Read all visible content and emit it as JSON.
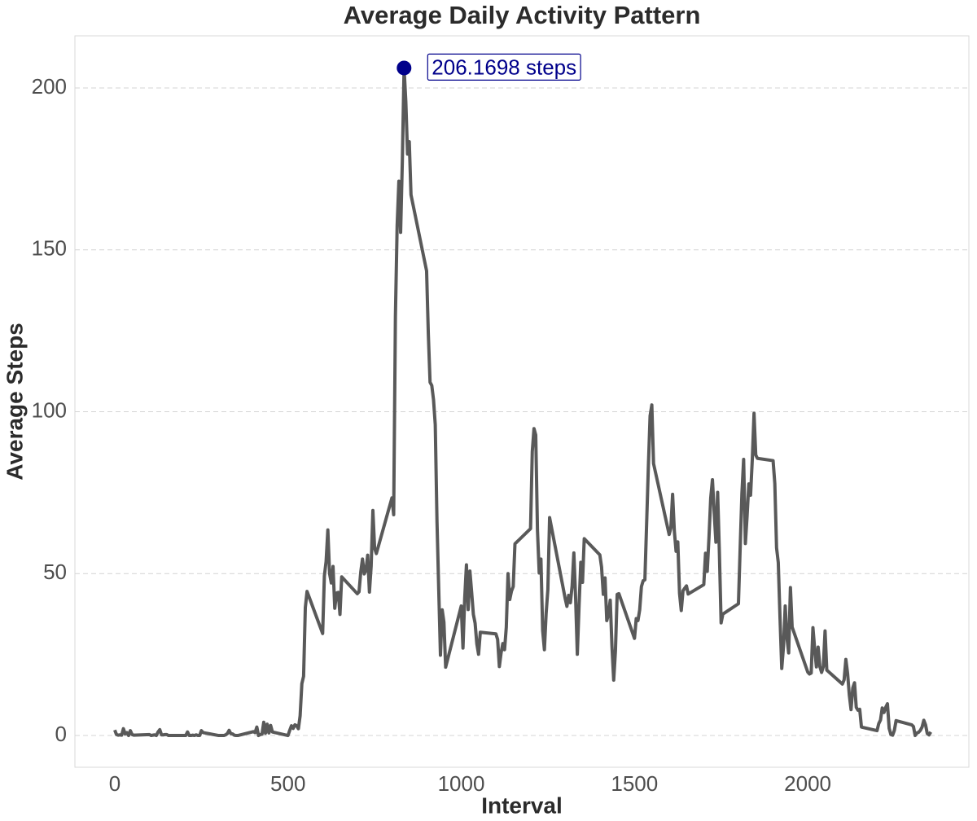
{
  "chart_data": {
    "type": "line",
    "title": "Average Daily Activity Pattern",
    "x_label": "Interval",
    "y_label": "Average Steps",
    "x": [
      0,
      5,
      10,
      15,
      20,
      25,
      30,
      35,
      40,
      45,
      50,
      55,
      100,
      105,
      110,
      115,
      120,
      125,
      130,
      135,
      140,
      145,
      150,
      155,
      200,
      205,
      210,
      215,
      220,
      225,
      230,
      235,
      240,
      245,
      250,
      255,
      300,
      305,
      310,
      315,
      320,
      325,
      330,
      335,
      340,
      345,
      350,
      355,
      400,
      405,
      410,
      415,
      420,
      425,
      430,
      435,
      440,
      445,
      450,
      455,
      500,
      505,
      510,
      515,
      520,
      525,
      530,
      535,
      540,
      545,
      550,
      555,
      600,
      605,
      610,
      615,
      620,
      625,
      630,
      635,
      640,
      645,
      650,
      655,
      700,
      705,
      710,
      715,
      720,
      725,
      730,
      735,
      740,
      745,
      750,
      755,
      800,
      805,
      810,
      815,
      820,
      825,
      830,
      835,
      840,
      845,
      850,
      855,
      900,
      905,
      910,
      915,
      920,
      925,
      930,
      935,
      940,
      945,
      950,
      955,
      1000,
      1005,
      1010,
      1015,
      1020,
      1025,
      1030,
      1035,
      1040,
      1045,
      1050,
      1055,
      1100,
      1105,
      1110,
      1115,
      1120,
      1125,
      1130,
      1135,
      1140,
      1145,
      1150,
      1155,
      1200,
      1205,
      1210,
      1215,
      1220,
      1225,
      1230,
      1235,
      1240,
      1245,
      1250,
      1255,
      1300,
      1305,
      1310,
      1315,
      1320,
      1325,
      1330,
      1335,
      1340,
      1345,
      1350,
      1355,
      1400,
      1405,
      1410,
      1415,
      1420,
      1425,
      1430,
      1435,
      1440,
      1445,
      1450,
      1455,
      1500,
      1505,
      1510,
      1515,
      1520,
      1525,
      1530,
      1535,
      1540,
      1545,
      1550,
      1555,
      1600,
      1605,
      1610,
      1615,
      1620,
      1625,
      1630,
      1635,
      1640,
      1645,
      1650,
      1655,
      1700,
      1705,
      1710,
      1715,
      1720,
      1725,
      1730,
      1735,
      1740,
      1745,
      1750,
      1755,
      1800,
      1805,
      1810,
      1815,
      1820,
      1825,
      1830,
      1835,
      1840,
      1845,
      1850,
      1855,
      1900,
      1905,
      1910,
      1915,
      1920,
      1925,
      1930,
      1935,
      1940,
      1945,
      1950,
      1955,
      2000,
      2005,
      2010,
      2015,
      2020,
      2025,
      2030,
      2035,
      2040,
      2045,
      2050,
      2055,
      2100,
      2105,
      2110,
      2115,
      2120,
      2125,
      2130,
      2135,
      2140,
      2145,
      2150,
      2155,
      2200,
      2205,
      2210,
      2215,
      2220,
      2225,
      2230,
      2235,
      2240,
      2245,
      2250,
      2255,
      2300,
      2305,
      2310,
      2315,
      2320,
      2325,
      2330,
      2335,
      2340,
      2345,
      2350,
      2355
    ],
    "values": [
      1.7,
      0.3,
      0.1,
      0.2,
      0.1,
      2.1,
      0.5,
      0.9,
      0,
      1.5,
      0.3,
      0.1,
      0.3,
      0,
      0.1,
      0.2,
      0,
      1.1,
      1.8,
      0.2,
      0.2,
      0.3,
      0.3,
      0,
      0,
      0,
      1.1,
      0,
      0,
      0.1,
      0,
      0.2,
      0,
      0,
      1.5,
      0.9,
      0,
      0,
      0,
      0,
      0.2,
      0.6,
      1.6,
      0.6,
      0.5,
      0.1,
      0,
      0,
      1.2,
      0.9,
      2.6,
      0,
      0.3,
      0.4,
      4.1,
      0.7,
      3.5,
      0.8,
      3.1,
      1.1,
      0,
      1.6,
      3,
      2.2,
      3.3,
      3,
      2.1,
      6.1,
      16,
      18.3,
      39.5,
      44.5,
      31.5,
      49.3,
      53.8,
      63.5,
      50,
      47.1,
      52.2,
      39.3,
      44,
      44.2,
      37.4,
      49,
      43.8,
      44.4,
      50.5,
      54.5,
      49.9,
      51,
      55.7,
      44.3,
      52.3,
      69.5,
      57.8,
      56.2,
      73.4,
      68.2,
      129.4,
      157.5,
      171.2,
      155.4,
      177.3,
      206.1698,
      195.9,
      179.6,
      183.4,
      167,
      143.5,
      124,
      109.1,
      108.1,
      103.7,
      96,
      66.2,
      45.2,
      24.8,
      38.8,
      35,
      21.1,
      40,
      27,
      42.4,
      52.7,
      38.9,
      50.8,
      44.3,
      37.4,
      34.7,
      28.3,
      25.1,
      31.9,
      31.4,
      29.7,
      21.3,
      25.5,
      28.4,
      26.5,
      33.4,
      50,
      42,
      44.6,
      46,
      59.2,
      63.9,
      87.7,
      94.8,
      92.8,
      63.4,
      50.2,
      54.5,
      32.4,
      26.5,
      37.7,
      45.1,
      67.3,
      42.3,
      39.9,
      43.3,
      41,
      46.2,
      56.4,
      42.8,
      25.1,
      40,
      53.5,
      47.3,
      60.8,
      55.8,
      52,
      43.6,
      48.7,
      35.5,
      37.5,
      41.8,
      27.5,
      17.1,
      26.1,
      43.6,
      43.8,
      30,
      36.1,
      35.5,
      38.8,
      46,
      47.8,
      48.1,
      65.3,
      82.9,
      98.7,
      102.1,
      84,
      62.1,
      64.1,
      74.5,
      63.2,
      56.9,
      59.8,
      43.9,
      38.6,
      44.7,
      45.5,
      46.2,
      43.7,
      46.6,
      56.3,
      50.7,
      61.2,
      73.4,
      79,
      68.9,
      59.7,
      75.1,
      56.5,
      34.8,
      37.5,
      40.7,
      58,
      74.7,
      85.3,
      59.3,
      67.8,
      77.7,
      74.2,
      85.3,
      99.5,
      86.6,
      85.6,
      84.9,
      77.8,
      58,
      53.4,
      36.3,
      20.7,
      27.4,
      40,
      30.2,
      25.5,
      45.7,
      33.5,
      19.6,
      19,
      19.3,
      33.3,
      26.8,
      21.2,
      27.3,
      21.3,
      19.5,
      21.3,
      32.3,
      20.2,
      15.9,
      17.2,
      23.5,
      19.2,
      12.5,
      8,
      14.7,
      16.3,
      8.7,
      7.8,
      8.1,
      2.6,
      1.5,
      3.7,
      4.8,
      8.5,
      7.1,
      8.7,
      9.8,
      2.2,
      0.3,
      0.1,
      1.6,
      4.6,
      3.3,
      2.8,
      0,
      0.8,
      1,
      1.6,
      2.6,
      4.7,
      3.3,
      0.6,
      0.2,
      1.1
    ],
    "color": "#595959",
    "annotation": {
      "x": 835,
      "y": 206.1698,
      "label": "206.1698 steps",
      "color": "#00008b"
    },
    "xlim": [
      -115,
      2465
    ],
    "ylim": [
      -9.8,
      216.1
    ],
    "xticks": [
      0,
      500,
      1000,
      1500,
      2000
    ],
    "yticks": [
      0,
      50,
      100,
      150,
      200
    ],
    "grid": true
  }
}
